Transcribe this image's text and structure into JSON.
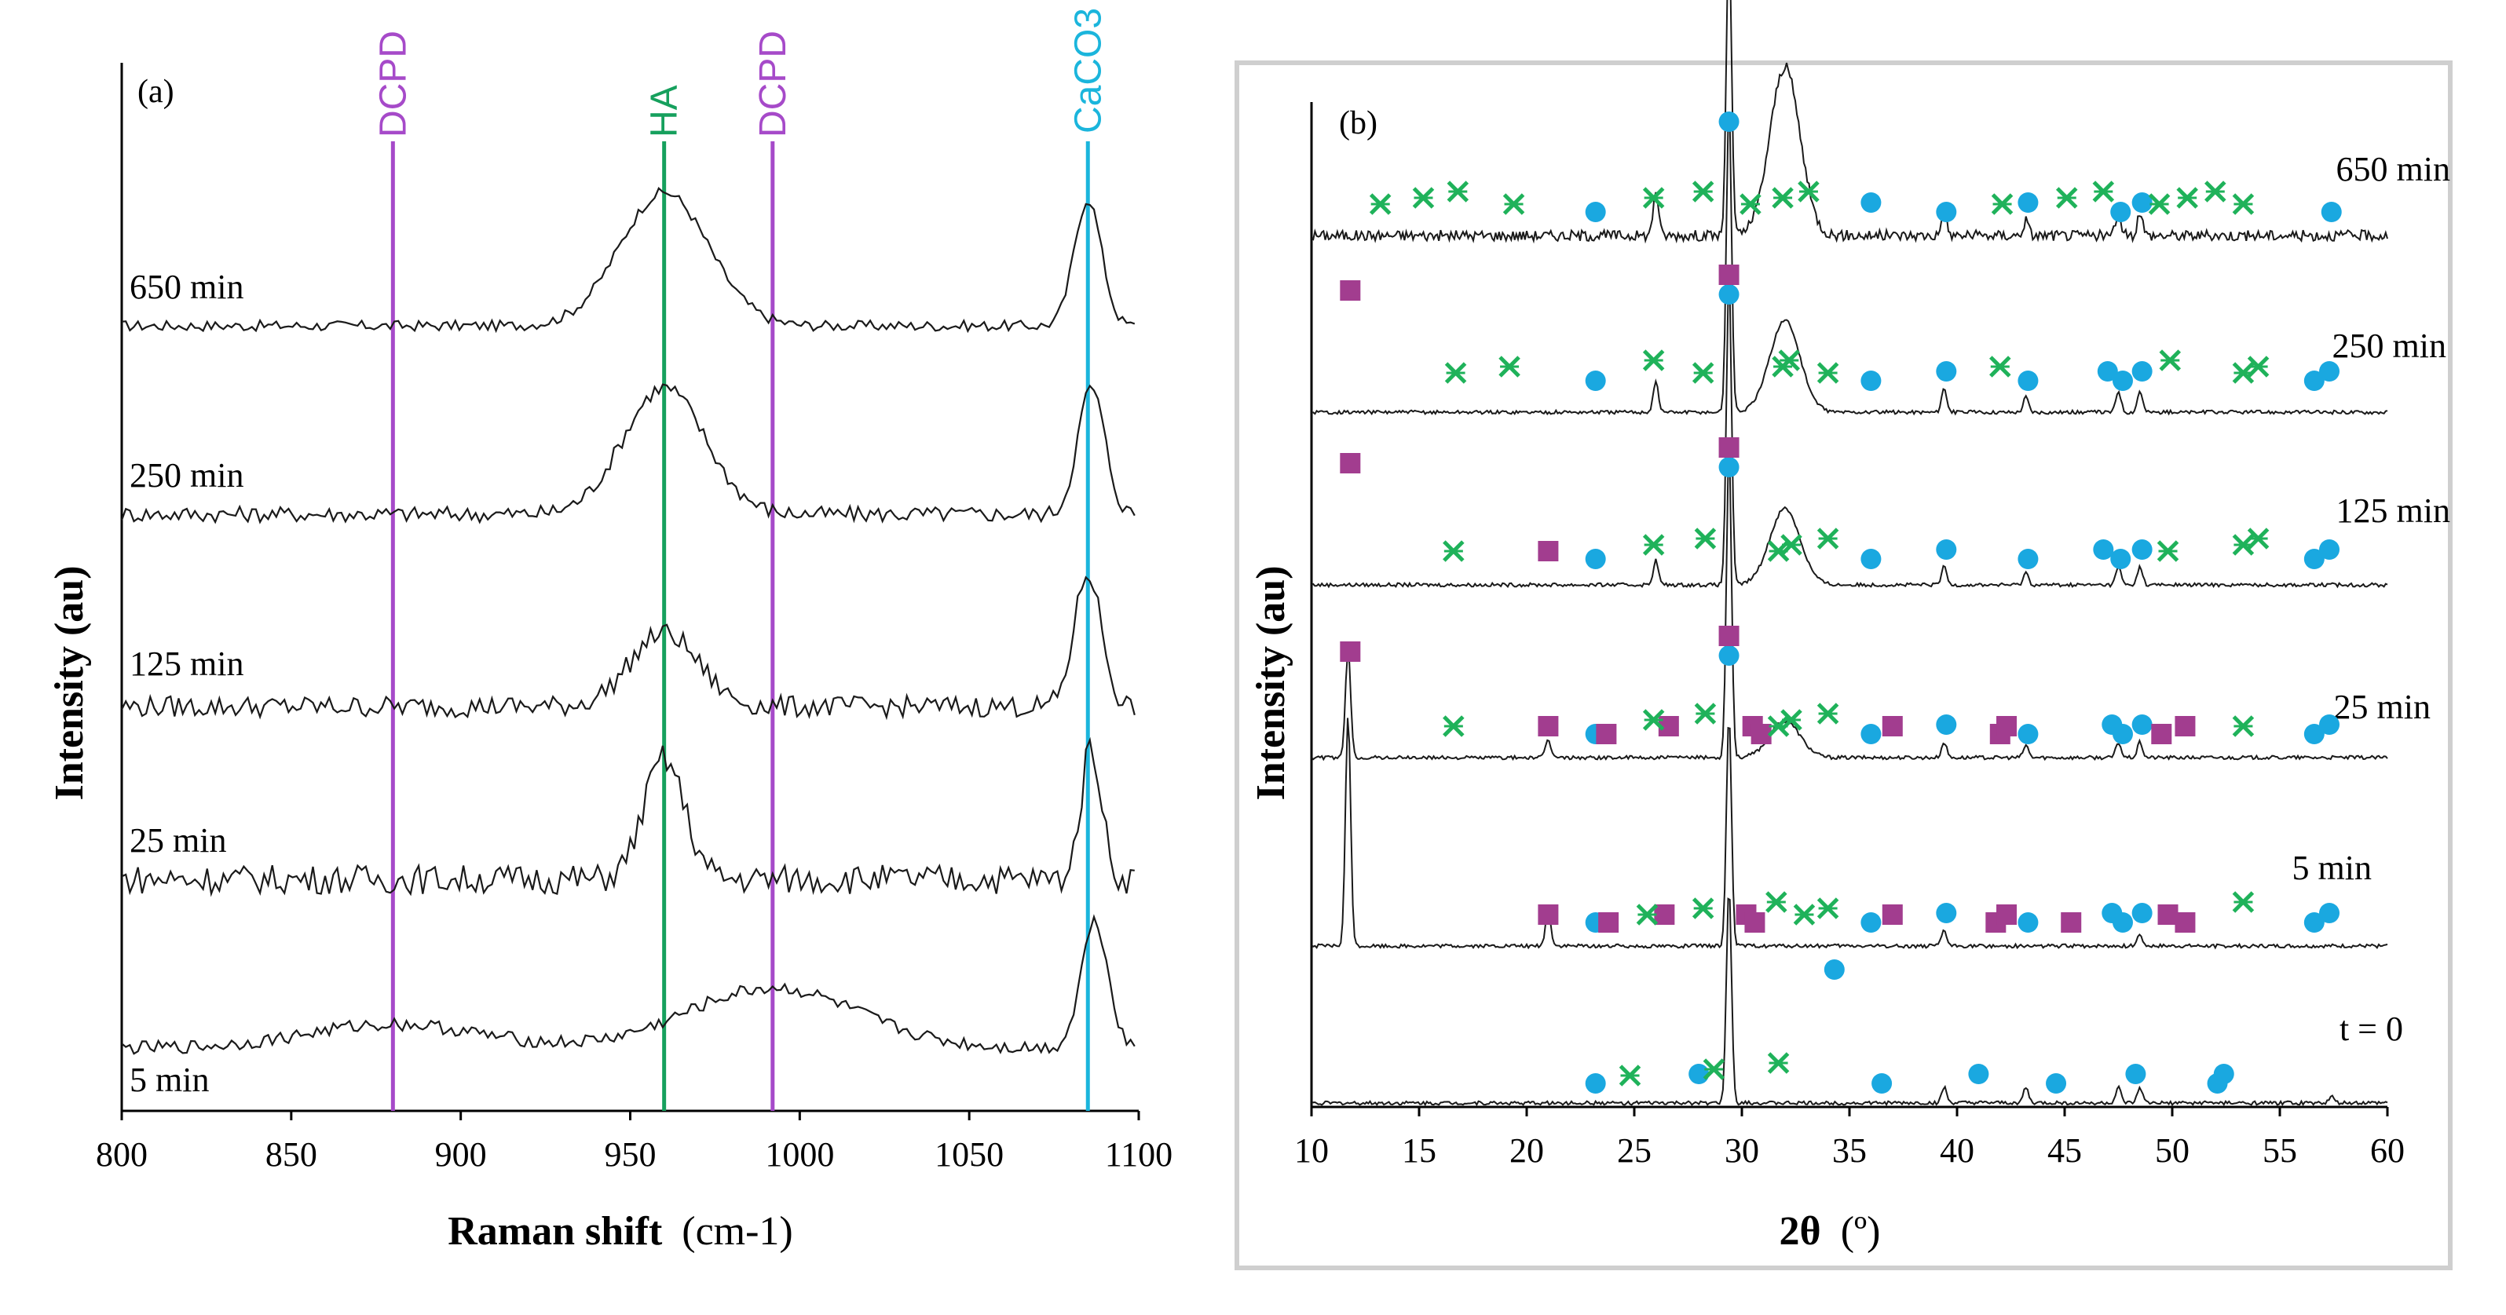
{
  "chart_data": [
    {
      "id": "a",
      "type": "line",
      "panel_label": "(a)",
      "xlabel": "Raman shift",
      "xlabel_unit": "(cm-1)",
      "ylabel": "Intensity (au)",
      "xlim": [
        800,
        1100
      ],
      "xticks": [
        "800",
        "850",
        "900",
        "950",
        "1000",
        "1050",
        "1100"
      ],
      "reference_lines": [
        {
          "label": "DCPD",
          "x": 880,
          "color": "#a64ac9"
        },
        {
          "label": "HA",
          "x": 960,
          "color": "#16a05d"
        },
        {
          "label": "DCPD",
          "x": 992,
          "color": "#a64ac9"
        },
        {
          "label": "CaCO3",
          "x": 1085,
          "color": "#1bb5dc"
        }
      ],
      "series": [
        {
          "name": "650 min",
          "peaks": [
            [
              960,
              1.0,
              13
            ],
            [
              1085,
              0.95,
              4
            ]
          ],
          "noise": 0.08
        },
        {
          "name": "250 min",
          "peaks": [
            [
              960,
              0.95,
              12
            ],
            [
              1086,
              0.95,
              4
            ]
          ],
          "noise": 0.12
        },
        {
          "name": "125 min",
          "peaks": [
            [
              960,
              0.55,
              10
            ],
            [
              1085,
              1.0,
              4
            ]
          ],
          "noise": 0.16
        },
        {
          "name": "25 min",
          "peaks": [
            [
              960,
              0.9,
              6
            ],
            [
              1086,
              1.0,
              3
            ]
          ],
          "noise": 0.22
        },
        {
          "name": "5 min",
          "peaks": [
            [
              880,
              0.18,
              25
            ],
            [
              992,
              0.45,
              25
            ],
            [
              1087,
              0.95,
              4
            ]
          ],
          "noise": 0.1
        }
      ]
    },
    {
      "id": "b",
      "type": "line",
      "panel_label": "(b)",
      "xlabel": "2θ",
      "xlabel_unit": "(º)",
      "ylabel": "Intensity (au)",
      "xlim": [
        10,
        60
      ],
      "xticks": [
        "10",
        "15",
        "20",
        "25",
        "30",
        "35",
        "40",
        "45",
        "50",
        "55",
        "60"
      ],
      "marker_legend": [
        {
          "shape": "circle",
          "color": "#1aa8e0"
        },
        {
          "shape": "cross",
          "color": "#1fb25a"
        },
        {
          "shape": "square",
          "color": "#a23d8f"
        }
      ],
      "series": [
        {
          "name": "650 min",
          "peaks": [
            [
              29.4,
              1.0
            ],
            [
              32.0,
              0.55
            ],
            [
              26.0,
              0.15
            ],
            [
              39.4,
              0.08
            ],
            [
              43.2,
              0.05
            ],
            [
              47.5,
              0.08
            ],
            [
              48.5,
              0.08
            ]
          ],
          "circles": [
            23.2,
            36.0,
            39.5,
            43.3,
            47.6,
            48.6,
            57.4
          ],
          "crosses": [
            13.2,
            15.2,
            16.8,
            19.4,
            25.9,
            28.2,
            30.4,
            31.9,
            33.1,
            42.1,
            45.1,
            46.8,
            49.4,
            50.7,
            52.0,
            53.3
          ],
          "squares": []
        },
        {
          "name": "250 min",
          "peaks": [
            [
              29.4,
              1.0
            ],
            [
              32.0,
              0.3
            ],
            [
              26.0,
              0.1
            ],
            [
              39.4,
              0.08
            ],
            [
              43.2,
              0.05
            ],
            [
              47.5,
              0.07
            ],
            [
              48.5,
              0.07
            ]
          ],
          "circles": [
            23.2,
            29.4,
            36.0,
            39.5,
            43.3,
            47.0,
            47.7,
            48.6,
            56.6,
            57.3
          ],
          "crosses": [
            16.7,
            19.2,
            25.9,
            28.2,
            31.9,
            32.2,
            34.0,
            42.0,
            49.9,
            53.3,
            54.0
          ],
          "squares": []
        },
        {
          "name": "125 min",
          "peaks": [
            [
              29.4,
              1.0
            ],
            [
              32.0,
              0.25
            ],
            [
              26.0,
              0.08
            ],
            [
              39.4,
              0.06
            ],
            [
              43.2,
              0.04
            ],
            [
              47.5,
              0.06
            ],
            [
              48.5,
              0.06
            ]
          ],
          "circles": [
            23.2,
            29.4,
            36.0,
            39.5,
            43.3,
            46.8,
            47.6,
            48.6,
            56.6,
            57.3
          ],
          "crosses": [
            16.6,
            25.9,
            28.3,
            31.7,
            32.3,
            34.0,
            49.8,
            53.3,
            54.0
          ],
          "squares": [
            11.8,
            21.0,
            29.4
          ]
        },
        {
          "name": "25 min",
          "peaks": [
            [
              11.7,
              0.35
            ],
            [
              29.4,
              1.0
            ],
            [
              32.0,
              0.12
            ],
            [
              21.0,
              0.06
            ],
            [
              39.4,
              0.05
            ],
            [
              43.2,
              0.04
            ],
            [
              47.5,
              0.05
            ],
            [
              48.5,
              0.05
            ]
          ],
          "circles": [
            23.2,
            29.4,
            36.0,
            39.5,
            43.3,
            47.2,
            47.7,
            48.6,
            56.6,
            57.3
          ],
          "crosses": [
            16.6,
            25.9,
            28.3,
            31.7,
            32.3,
            34.0,
            53.3
          ],
          "squares": [
            11.8,
            21.0,
            23.7,
            26.6,
            29.4,
            30.5,
            30.9,
            37.0,
            42.0,
            42.3,
            49.5,
            50.6
          ]
        },
        {
          "name": "5 min",
          "peaks": [
            [
              11.7,
              0.75
            ],
            [
              29.4,
              0.75
            ],
            [
              21.0,
              0.12
            ],
            [
              39.4,
              0.05
            ],
            [
              48.5,
              0.04
            ]
          ],
          "circles": [
            23.2,
            29.4,
            36.0,
            39.5,
            43.3,
            47.2,
            47.7,
            48.6,
            56.6,
            57.3
          ],
          "crosses": [
            25.6,
            28.2,
            31.6,
            32.9,
            34.0,
            53.3
          ],
          "squares": [
            11.8,
            21.0,
            23.8,
            26.4,
            29.4,
            30.2,
            30.6,
            37.0,
            41.8,
            42.3,
            45.3,
            49.8,
            50.6
          ]
        },
        {
          "name": "t = 0",
          "peaks": [
            [
              29.4,
              0.7
            ],
            [
              39.4,
              0.05
            ],
            [
              43.2,
              0.05
            ],
            [
              47.5,
              0.05
            ],
            [
              48.5,
              0.05
            ],
            [
              57.4,
              0.02
            ]
          ],
          "circles": [
            23.2,
            28.0,
            36.5,
            41.0,
            44.6,
            48.3,
            52.1,
            52.4
          ],
          "crosses": [
            24.8,
            28.7,
            31.7
          ],
          "squares": [],
          "extra_circles": [
            34.3
          ]
        }
      ]
    }
  ]
}
